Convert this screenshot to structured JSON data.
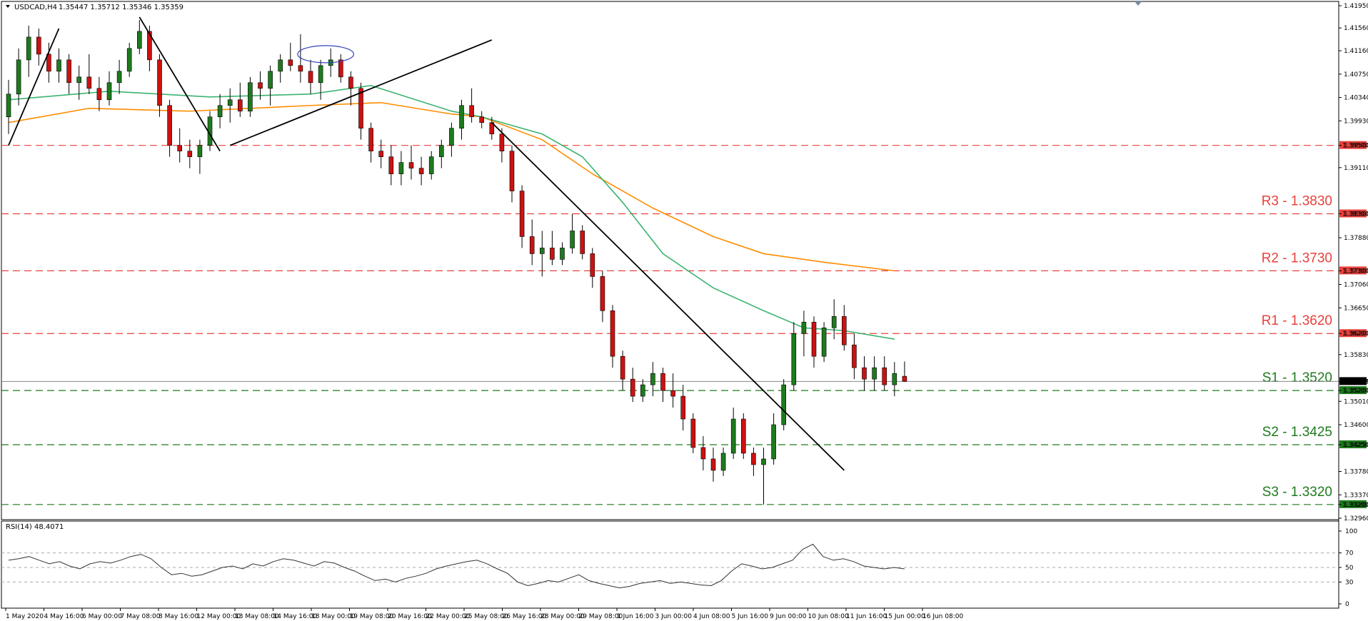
{
  "header": {
    "symbol": "USDCAD,H4",
    "ohlc": "1.35447 1.35712 1.35346 1.35359"
  },
  "rsi_header": "RSI(14) 48.4071",
  "colors": {
    "resistance": "#e8413c",
    "support": "#1e7a1e",
    "bull": "#1e7a1e",
    "bear": "#cc1111",
    "ma_fast": "#3cb371",
    "ma_slow": "#ff8c00",
    "trend": "#000000",
    "ellipse": "#3344bb"
  },
  "chart_data": [
    {
      "type": "candlestick",
      "title": "USDCAD,H4",
      "ylim": [
        1.3296,
        1.42
      ],
      "y_ticks": [
        "1.41950",
        "1.41560",
        "1.41160",
        "1.40750",
        "1.40340",
        "1.39930",
        "1.39500",
        "1.39110",
        "1.38300",
        "1.37880",
        "1.37300",
        "1.37060",
        "1.36650",
        "1.36200",
        "1.35830",
        "1.35359",
        "1.35200",
        "1.35010",
        "1.34600",
        "1.34250",
        "1.33780",
        "1.33370",
        "1.33200",
        "1.32960"
      ],
      "x_labels": [
        "1 May 2020",
        "4 May 16:00",
        "6 May 00:00",
        "7 May 08:00",
        "8 May 16:00",
        "12 May 00:00",
        "13 May 08:00",
        "14 May 16:00",
        "18 May 00:00",
        "19 May 08:00",
        "20 May 16:00",
        "22 May 00:00",
        "25 May 08:00",
        "26 May 16:00",
        "28 May 00:00",
        "29 May 08:00",
        "1 Jun 16:00",
        "3 Jun 00:00",
        "4 Jun 08:00",
        "5 Jun 16:00",
        "9 Jun 00:00",
        "10 Jun 08:00",
        "11 Jun 16:00",
        "15 Jun 00:00",
        "16 Jun 08:00"
      ],
      "current_price": "1.35359",
      "levels": [
        {
          "name": "R3 - 1.3830",
          "value": 1.383,
          "tag": "1.38300",
          "kind": "resistance"
        },
        {
          "name": "R2 - 1.3730",
          "value": 1.373,
          "tag": "1.37300",
          "kind": "resistance"
        },
        {
          "name": "R1 - 1.3620",
          "value": 1.362,
          "tag": "1.36200",
          "kind": "resistance"
        },
        {
          "name": "S1 - 1.3520",
          "value": 1.352,
          "tag": "1.35200",
          "kind": "support"
        },
        {
          "name": "S2 - 1.3425",
          "value": 1.3425,
          "tag": "1.34250",
          "kind": "support"
        },
        {
          "name": "S3 - 1.3320",
          "value": 1.332,
          "tag": "1.33200",
          "kind": "support"
        },
        {
          "name": "",
          "value": 1.395,
          "tag": "1.39500",
          "kind": "resistance"
        }
      ],
      "candles": [
        [
          1.4,
          1.4065,
          1.397,
          1.404
        ],
        [
          1.404,
          1.412,
          1.402,
          1.41
        ],
        [
          1.41,
          1.416,
          1.407,
          1.414
        ],
        [
          1.414,
          1.4155,
          1.409,
          1.411
        ],
        [
          1.411,
          1.413,
          1.406,
          1.408
        ],
        [
          1.408,
          1.412,
          1.406,
          1.41
        ],
        [
          1.41,
          1.411,
          1.404,
          1.406
        ],
        [
          1.406,
          1.409,
          1.403,
          1.407
        ],
        [
          1.407,
          1.411,
          1.404,
          1.405
        ],
        [
          1.405,
          1.407,
          1.401,
          1.403
        ],
        [
          1.403,
          1.408,
          1.402,
          1.406
        ],
        [
          1.406,
          1.41,
          1.404,
          1.408
        ],
        [
          1.408,
          1.413,
          1.407,
          1.412
        ],
        [
          1.412,
          1.417,
          1.411,
          1.415
        ],
        [
          1.415,
          1.416,
          1.408,
          1.41
        ],
        [
          1.41,
          1.411,
          1.4,
          1.402
        ],
        [
          1.402,
          1.403,
          1.393,
          1.395
        ],
        [
          1.395,
          1.398,
          1.392,
          1.394
        ],
        [
          1.394,
          1.396,
          1.391,
          1.393
        ],
        [
          1.393,
          1.396,
          1.39,
          1.395
        ],
        [
          1.395,
          1.401,
          1.394,
          1.4
        ],
        [
          1.4,
          1.404,
          1.398,
          1.402
        ],
        [
          1.402,
          1.405,
          1.399,
          1.403
        ],
        [
          1.403,
          1.406,
          1.4,
          1.401
        ],
        [
          1.401,
          1.407,
          1.4,
          1.406
        ],
        [
          1.406,
          1.408,
          1.403,
          1.405
        ],
        [
          1.405,
          1.409,
          1.402,
          1.408
        ],
        [
          1.408,
          1.411,
          1.406,
          1.41
        ],
        [
          1.41,
          1.413,
          1.408,
          1.409
        ],
        [
          1.409,
          1.4145,
          1.406,
          1.408
        ],
        [
          1.408,
          1.41,
          1.404,
          1.406
        ],
        [
          1.406,
          1.41,
          1.403,
          1.409
        ],
        [
          1.409,
          1.412,
          1.407,
          1.41
        ],
        [
          1.41,
          1.411,
          1.406,
          1.407
        ],
        [
          1.407,
          1.408,
          1.402,
          1.405
        ],
        [
          1.405,
          1.406,
          1.396,
          1.398
        ],
        [
          1.398,
          1.399,
          1.392,
          1.394
        ],
        [
          1.394,
          1.396,
          1.391,
          1.393
        ],
        [
          1.393,
          1.395,
          1.388,
          1.39
        ],
        [
          1.39,
          1.394,
          1.388,
          1.392
        ],
        [
          1.392,
          1.395,
          1.389,
          1.391
        ],
        [
          1.391,
          1.393,
          1.388,
          1.39
        ],
        [
          1.39,
          1.394,
          1.389,
          1.393
        ],
        [
          1.393,
          1.396,
          1.391,
          1.395
        ],
        [
          1.395,
          1.399,
          1.393,
          1.398
        ],
        [
          1.398,
          1.403,
          1.396,
          1.402
        ],
        [
          1.402,
          1.405,
          1.399,
          1.4
        ],
        [
          1.4,
          1.401,
          1.398,
          1.399
        ],
        [
          1.399,
          1.4,
          1.396,
          1.397
        ],
        [
          1.397,
          1.398,
          1.392,
          1.394
        ],
        [
          1.394,
          1.395,
          1.385,
          1.387
        ],
        [
          1.387,
          1.388,
          1.377,
          1.379
        ],
        [
          1.379,
          1.382,
          1.374,
          1.376
        ],
        [
          1.376,
          1.38,
          1.372,
          1.377
        ],
        [
          1.377,
          1.38,
          1.374,
          1.375
        ],
        [
          1.375,
          1.378,
          1.374,
          1.377
        ],
        [
          1.377,
          1.383,
          1.376,
          1.38
        ],
        [
          1.38,
          1.381,
          1.375,
          1.376
        ],
        [
          1.376,
          1.377,
          1.37,
          1.372
        ],
        [
          1.372,
          1.373,
          1.364,
          1.366
        ],
        [
          1.366,
          1.367,
          1.356,
          1.358
        ],
        [
          1.358,
          1.359,
          1.352,
          1.354
        ],
        [
          1.354,
          1.356,
          1.35,
          1.351
        ],
        [
          1.351,
          1.354,
          1.35,
          1.353
        ],
        [
          1.353,
          1.357,
          1.351,
          1.355
        ],
        [
          1.355,
          1.356,
          1.35,
          1.352
        ],
        [
          1.352,
          1.355,
          1.349,
          1.351
        ],
        [
          1.351,
          1.353,
          1.345,
          1.347
        ],
        [
          1.347,
          1.348,
          1.341,
          1.342
        ],
        [
          1.342,
          1.344,
          1.338,
          1.34
        ],
        [
          1.34,
          1.342,
          1.336,
          1.338
        ],
        [
          1.338,
          1.342,
          1.337,
          1.341
        ],
        [
          1.341,
          1.349,
          1.34,
          1.347
        ],
        [
          1.347,
          1.348,
          1.34,
          1.341
        ],
        [
          1.341,
          1.342,
          1.337,
          1.339
        ],
        [
          1.339,
          1.342,
          1.332,
          1.34
        ],
        [
          1.34,
          1.348,
          1.339,
          1.346
        ],
        [
          1.346,
          1.354,
          1.345,
          1.353
        ],
        [
          1.353,
          1.364,
          1.352,
          1.362
        ],
        [
          1.362,
          1.366,
          1.358,
          1.364
        ],
        [
          1.364,
          1.365,
          1.356,
          1.358
        ],
        [
          1.358,
          1.364,
          1.357,
          1.363
        ],
        [
          1.363,
          1.368,
          1.361,
          1.365
        ],
        [
          1.365,
          1.367,
          1.359,
          1.36
        ],
        [
          1.36,
          1.362,
          1.354,
          1.356
        ],
        [
          1.356,
          1.358,
          1.352,
          1.354
        ],
        [
          1.354,
          1.358,
          1.352,
          1.356
        ],
        [
          1.356,
          1.358,
          1.352,
          1.353
        ],
        [
          1.353,
          1.357,
          1.351,
          1.355
        ],
        [
          1.3545,
          1.3571,
          1.3535,
          1.3536
        ]
      ],
      "ma_fast": [
        [
          0,
          1.403
        ],
        [
          10,
          1.4045
        ],
        [
          20,
          1.4035
        ],
        [
          30,
          1.404
        ],
        [
          36,
          1.4055
        ],
        [
          44,
          1.401
        ],
        [
          47,
          1.4
        ],
        [
          53,
          1.397
        ],
        [
          57,
          1.393
        ],
        [
          61,
          1.385
        ],
        [
          65,
          1.376
        ],
        [
          70,
          1.37
        ],
        [
          75,
          1.366
        ],
        [
          79,
          1.363
        ],
        [
          83,
          1.3625
        ],
        [
          88,
          1.361
        ]
      ],
      "ma_slow": [
        [
          0,
          1.399
        ],
        [
          8,
          1.4015
        ],
        [
          18,
          1.401
        ],
        [
          30,
          1.402
        ],
        [
          37,
          1.4025
        ],
        [
          44,
          1.4005
        ],
        [
          47,
          1.4
        ],
        [
          53,
          1.396
        ],
        [
          58,
          1.39
        ],
        [
          64,
          1.384
        ],
        [
          70,
          1.379
        ],
        [
          75,
          1.376
        ],
        [
          81,
          1.3745
        ],
        [
          88,
          1.373
        ]
      ],
      "trendlines": [
        [
          [
            0,
            1.395
          ],
          [
            5,
            1.4155
          ]
        ],
        [
          [
            13,
            1.4175
          ],
          [
            21,
            1.394
          ]
        ],
        [
          [
            22,
            1.395
          ],
          [
            48,
            1.4135
          ]
        ],
        [
          [
            48,
            1.399
          ],
          [
            83,
            1.338
          ]
        ]
      ],
      "ellipse": {
        "x": [
          29,
          34
        ],
        "y": [
          1.4095,
          1.4125
        ]
      }
    },
    {
      "type": "line",
      "title": "RSI(14) 48.4071",
      "ylim": [
        0,
        100
      ],
      "y_ticks": [
        "100",
        "70",
        "50",
        "30",
        "0"
      ],
      "values": [
        60,
        62,
        65,
        60,
        55,
        58,
        52,
        48,
        55,
        58,
        56,
        60,
        65,
        68,
        62,
        50,
        40,
        42,
        38,
        40,
        45,
        50,
        52,
        48,
        55,
        52,
        58,
        62,
        60,
        56,
        52,
        58,
        56,
        50,
        45,
        38,
        32,
        34,
        30,
        35,
        38,
        42,
        48,
        52,
        55,
        58,
        60,
        55,
        48,
        42,
        30,
        25,
        28,
        32,
        30,
        35,
        40,
        32,
        28,
        25,
        22,
        24,
        28,
        30,
        32,
        28,
        30,
        28,
        26,
        25,
        32,
        45,
        55,
        52,
        48,
        50,
        55,
        60,
        75,
        82,
        65,
        60,
        62,
        58,
        52,
        50,
        48,
        50,
        48
      ]
    }
  ]
}
